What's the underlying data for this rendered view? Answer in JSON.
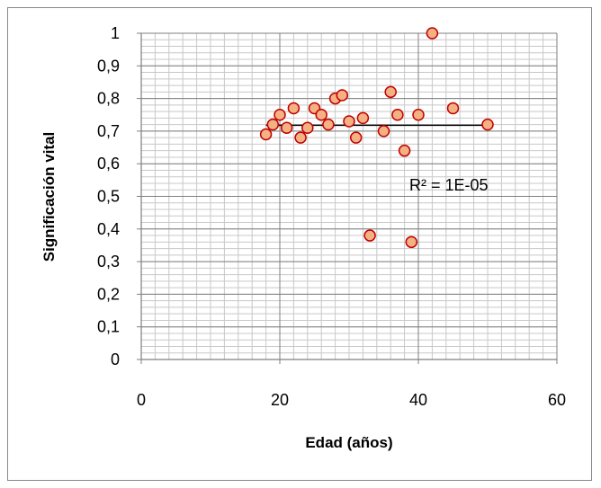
{
  "chart_data": {
    "type": "scatter",
    "title": "",
    "xlabel": "Edad (años)",
    "ylabel": "Significación vital",
    "xlim": [
      0,
      60
    ],
    "ylim": [
      0,
      1
    ],
    "x_ticks": [
      "0",
      "20",
      "40",
      "60"
    ],
    "y_ticks": [
      "0",
      "0,1",
      "0,2",
      "0,3",
      "0,4",
      "0,5",
      "0,6",
      "0,7",
      "0,8",
      "0,9",
      "1"
    ],
    "grid": true,
    "legend": "none",
    "marker_fill": "#f4b183",
    "marker_edge": "#c00000",
    "trendline": {
      "type": "linear",
      "x": [
        18,
        50
      ],
      "y": [
        0.718,
        0.718
      ],
      "color": "#000000"
    },
    "annotation": "R² = 1E-05",
    "points": [
      {
        "x": 18,
        "y": 0.69
      },
      {
        "x": 19,
        "y": 0.72
      },
      {
        "x": 20,
        "y": 0.75
      },
      {
        "x": 21,
        "y": 0.71
      },
      {
        "x": 22,
        "y": 0.77
      },
      {
        "x": 23,
        "y": 0.68
      },
      {
        "x": 24,
        "y": 0.71
      },
      {
        "x": 25,
        "y": 0.77
      },
      {
        "x": 26,
        "y": 0.75
      },
      {
        "x": 27,
        "y": 0.72
      },
      {
        "x": 28,
        "y": 0.8
      },
      {
        "x": 29,
        "y": 0.81
      },
      {
        "x": 30,
        "y": 0.73
      },
      {
        "x": 31,
        "y": 0.68
      },
      {
        "x": 32,
        "y": 0.74
      },
      {
        "x": 33,
        "y": 0.38
      },
      {
        "x": 35,
        "y": 0.7
      },
      {
        "x": 36,
        "y": 0.82
      },
      {
        "x": 37,
        "y": 0.75
      },
      {
        "x": 38,
        "y": 0.64
      },
      {
        "x": 39,
        "y": 0.36
      },
      {
        "x": 40,
        "y": 0.75
      },
      {
        "x": 42,
        "y": 1.0
      },
      {
        "x": 45,
        "y": 0.77
      },
      {
        "x": 50,
        "y": 0.72
      }
    ]
  }
}
